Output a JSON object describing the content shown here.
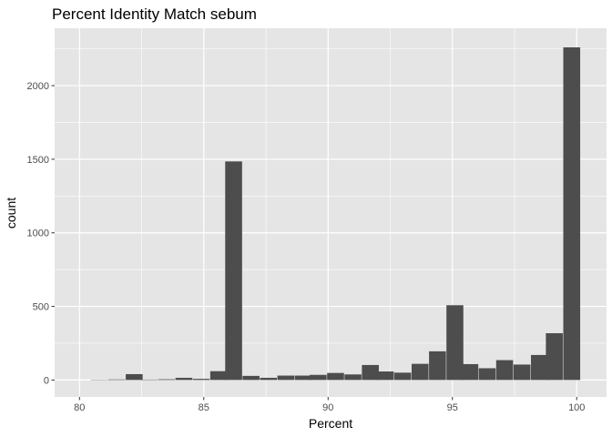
{
  "chart_data": {
    "type": "bar",
    "title": "Percent Identity Match sebum",
    "xlabel": "Percent",
    "ylabel": "count",
    "xlim": [
      79.0,
      101.2
    ],
    "ylim": [
      -115,
      2390
    ],
    "x_ticks": [
      80,
      85,
      90,
      95,
      100
    ],
    "y_ticks": [
      0,
      500,
      1000,
      1500,
      2000
    ],
    "x_tick_labels": [
      "80",
      "85",
      "90",
      "95",
      "100"
    ],
    "y_tick_labels": [
      "0",
      "500",
      "1000",
      "1500",
      "2000"
    ],
    "bin_width": 0.68,
    "bins": [
      {
        "x": 80.8,
        "count": 2
      },
      {
        "x": 81.5,
        "count": 4
      },
      {
        "x": 82.2,
        "count": 40
      },
      {
        "x": 82.8,
        "count": 3
      },
      {
        "x": 83.5,
        "count": 5
      },
      {
        "x": 84.2,
        "count": 15
      },
      {
        "x": 84.9,
        "count": 8
      },
      {
        "x": 85.6,
        "count": 60
      },
      {
        "x": 86.2,
        "count": 1485
      },
      {
        "x": 86.9,
        "count": 28
      },
      {
        "x": 87.6,
        "count": 15
      },
      {
        "x": 88.3,
        "count": 30
      },
      {
        "x": 89.0,
        "count": 30
      },
      {
        "x": 89.6,
        "count": 35
      },
      {
        "x": 90.3,
        "count": 48
      },
      {
        "x": 91.0,
        "count": 38
      },
      {
        "x": 91.7,
        "count": 102
      },
      {
        "x": 92.3,
        "count": 58
      },
      {
        "x": 93.0,
        "count": 50
      },
      {
        "x": 93.7,
        "count": 110
      },
      {
        "x": 94.4,
        "count": 195
      },
      {
        "x": 95.1,
        "count": 508
      },
      {
        "x": 95.7,
        "count": 108
      },
      {
        "x": 96.4,
        "count": 80
      },
      {
        "x": 97.1,
        "count": 135
      },
      {
        "x": 97.8,
        "count": 105
      },
      {
        "x": 98.5,
        "count": 170
      },
      {
        "x": 99.1,
        "count": 318
      },
      {
        "x": 99.8,
        "count": 2260
      }
    ],
    "grid": true,
    "colors": {
      "panel_background": "#e5e5e5",
      "grid_major": "#ffffff",
      "bar_fill": "#4d4d4d"
    }
  }
}
